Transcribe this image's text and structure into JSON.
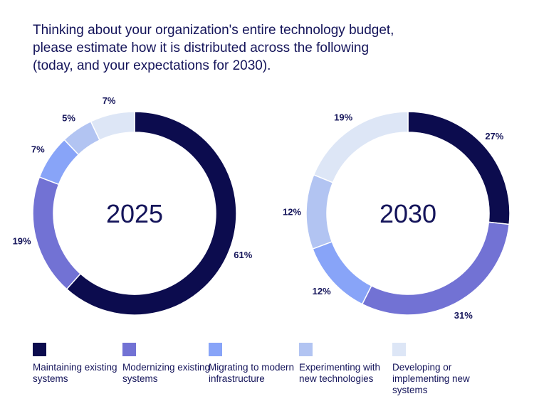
{
  "title": "Thinking about your organization's entire technology budget, please estimate how it is distributed across the following (today, and your expectations for 2030).",
  "chart_data": [
    {
      "type": "pie",
      "variant": "donut",
      "center_label": "2025",
      "categories": [
        "Maintaining existing systems",
        "Modernizing existing systems",
        "Migrating to modern infrastructure",
        "Experimenting with new technologies",
        "Developing or implementing new systems"
      ],
      "values": [
        61,
        19,
        7,
        5,
        7
      ],
      "unit": "%"
    },
    {
      "type": "pie",
      "variant": "donut",
      "center_label": "2030",
      "categories": [
        "Maintaining existing systems",
        "Modernizing existing systems",
        "Migrating to modern infrastructure",
        "Experimenting with new technologies",
        "Developing or implementing new systems"
      ],
      "values": [
        27,
        31,
        12,
        12,
        19
      ],
      "unit": "%"
    }
  ],
  "legend": [
    {
      "label": "Maintaining existing systems",
      "color": "#0c0c4e"
    },
    {
      "label": "Modernizing existing systems",
      "color": "#7272d4"
    },
    {
      "label": "Migrating to modern infrastructure",
      "color": "#88a4f8"
    },
    {
      "label": "Experimenting with new technologies",
      "color": "#b2c4f2"
    },
    {
      "label": "Developing or implementing new systems",
      "color": "#dde6f6"
    }
  ],
  "legend_position": "bottom"
}
